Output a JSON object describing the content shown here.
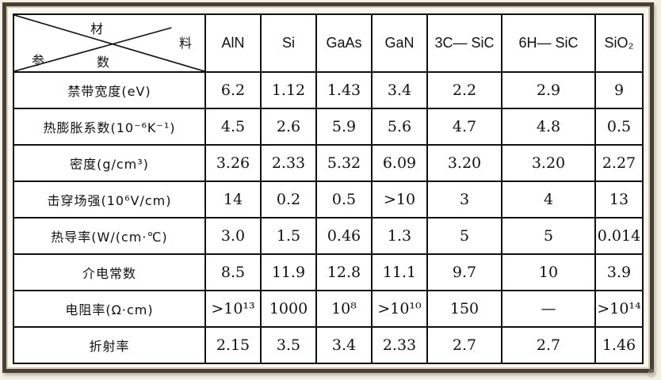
{
  "table": {
    "corner": {
      "top_label": "材",
      "right_label": "料",
      "bottom_left_label": "参",
      "bottom_label": "数"
    },
    "materials": [
      "AlN",
      "Si",
      "GaAs",
      "GaN",
      "3C— SiC",
      "6H— SiC",
      "SiO₂"
    ],
    "rows": [
      {
        "param": "禁带宽度(eV)",
        "values": [
          "6.2",
          "1.12",
          "1.43",
          "3.4",
          "2.2",
          "2.9",
          "9"
        ]
      },
      {
        "param": "热膨胀系数(10⁻⁶K⁻¹)",
        "values": [
          "4.5",
          "2.6",
          "5.9",
          "5.6",
          "4.7",
          "4.8",
          "0.5"
        ]
      },
      {
        "param": "密度(g/cm³)",
        "values": [
          "3.26",
          "2.33",
          "5.32",
          "6.09",
          "3.20",
          "3.20",
          "2.27"
        ]
      },
      {
        "param": "击穿场强(10⁶V/cm)",
        "values": [
          "14",
          "0.2",
          "0.5",
          ">10",
          "3",
          "4",
          "13"
        ]
      },
      {
        "param": "热导率(W/(cm·℃)",
        "values": [
          "3.0",
          "1.5",
          "0.46",
          "1.3",
          "5",
          "5",
          "0.014"
        ]
      },
      {
        "param": "介电常数",
        "values": [
          "8.5",
          "11.9",
          "12.8",
          "11.1",
          "9.7",
          "10",
          "3.9"
        ]
      },
      {
        "param": "电阻率(Ω·cm)",
        "values": [
          ">10¹³",
          "1000",
          "10⁸",
          ">10¹⁰",
          "150",
          "—",
          ">10¹⁴"
        ]
      },
      {
        "param": "折射率",
        "values": [
          "2.15",
          "3.5",
          "3.4",
          "2.33",
          "2.7",
          "2.7",
          "1.46"
        ]
      }
    ]
  },
  "watermark": "@"
}
